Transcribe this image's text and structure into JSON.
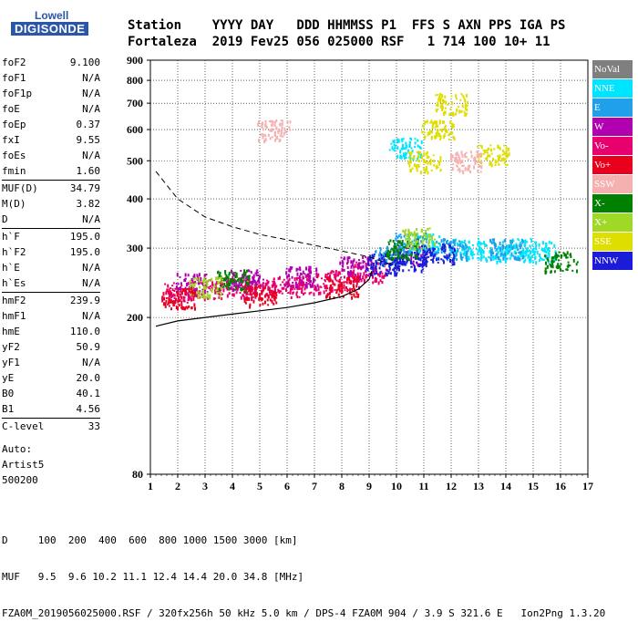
{
  "logo": {
    "line1": "Lowell",
    "line2": "DIGISONDE"
  },
  "header": {
    "line1": "Station    YYYY DAY   DDD HHMMSS P1  FFS S AXN PPS IGA PS",
    "line2": "Fortaleza  2019 Fev25 056 025000 RSF   1 714 100 10+ 11"
  },
  "params": {
    "group1": [
      {
        "label": "foF2",
        "value": "9.100"
      },
      {
        "label": "foF1",
        "value": "N/A"
      },
      {
        "label": "foF1p",
        "value": "N/A"
      },
      {
        "label": "foE",
        "value": "N/A"
      },
      {
        "label": "foEp",
        "value": "0.37"
      },
      {
        "label": "fxI",
        "value": "9.55"
      },
      {
        "label": "foEs",
        "value": "N/A"
      },
      {
        "label": "fmin",
        "value": "1.60"
      }
    ],
    "group2": [
      {
        "label": "MUF(D)",
        "value": "34.79"
      },
      {
        "label": "M(D)",
        "value": "3.82"
      },
      {
        "label": "D",
        "value": "N/A"
      }
    ],
    "group3": [
      {
        "label": "h`F",
        "value": "195.0"
      },
      {
        "label": "h`F2",
        "value": "195.0"
      },
      {
        "label": "h`E",
        "value": "N/A"
      },
      {
        "label": "h`Es",
        "value": "N/A"
      }
    ],
    "group4": [
      {
        "label": "hmF2",
        "value": "239.9"
      },
      {
        "label": "hmF1",
        "value": "N/A"
      },
      {
        "label": "hmE",
        "value": "110.0"
      },
      {
        "label": "yF2",
        "value": "50.9"
      },
      {
        "label": "yF1",
        "value": "N/A"
      },
      {
        "label": "yE",
        "value": "20.0"
      },
      {
        "label": "B0",
        "value": "40.1"
      },
      {
        "label": "B1",
        "value": "4.56"
      }
    ],
    "group5": [
      {
        "label": "C-level",
        "value": "33"
      }
    ]
  },
  "auto": {
    "line1": "Auto:",
    "line2": "Artist5",
    "line3": "500200"
  },
  "legend": [
    {
      "label": "NoVal",
      "color": "#7f7f7f"
    },
    {
      "label": "NNE",
      "color": "#00e5ff"
    },
    {
      "label": "E",
      "color": "#1fa0e8"
    },
    {
      "label": "W",
      "color": "#b000b0"
    },
    {
      "label": "Vo-",
      "color": "#e8006e"
    },
    {
      "label": "Vo+",
      "color": "#e8001c"
    },
    {
      "label": "SSW",
      "color": "#f5b0b0"
    },
    {
      "label": "X-",
      "color": "#008000"
    },
    {
      "label": "X+",
      "color": "#a0d828"
    },
    {
      "label": "SSE",
      "color": "#dede00"
    },
    {
      "label": "NNW",
      "color": "#1c1cd8"
    }
  ],
  "footer": {
    "line1": "D     100  200  400  600  800 1000 1500 3000 [km]",
    "line2": "MUF   9.5  9.6 10.2 11.1 12.4 14.4 20.0 34.8 [MHz]",
    "line3": "FZA0M_2019056025000.RSF / 320fx256h 50 kHz 5.0 km / DPS-4 FZA0M 904 / 3.9 S 321.6 E   Ion2Png 1.3.20"
  },
  "chart_data": {
    "type": "scatter",
    "xlim": [
      1,
      17
    ],
    "ylim": [
      80,
      900
    ],
    "y_scale": "log",
    "xticks": [
      1,
      2,
      3,
      4,
      5,
      6,
      7,
      8,
      9,
      10,
      11,
      12,
      13,
      14,
      15,
      16,
      17
    ],
    "yticks": [
      80,
      200,
      300,
      400,
      500,
      600,
      700,
      800,
      900
    ],
    "grid": true,
    "legend_position": "right",
    "series": [
      {
        "name": "Vo-",
        "color": "#e8006e",
        "clusters": [
          [
            2.0,
            232
          ],
          [
            3.0,
            238
          ],
          [
            4.0,
            240
          ],
          [
            5.0,
            238
          ],
          [
            6.0,
            240
          ],
          [
            7.0,
            245
          ],
          [
            8.0,
            250
          ],
          [
            9.0,
            262
          ]
        ]
      },
      {
        "name": "W",
        "color": "#b000b0",
        "clusters": [
          [
            2.5,
            245
          ],
          [
            4.5,
            250
          ],
          [
            6.5,
            255
          ],
          [
            8.5,
            270
          ],
          [
            10.5,
            290
          ]
        ]
      },
      {
        "name": "NNE",
        "color": "#00e5ff",
        "clusters": [
          [
            10.3,
            540
          ],
          [
            11.0,
            310
          ],
          [
            12.5,
            300
          ],
          [
            13.5,
            295
          ],
          [
            14.5,
            300
          ],
          [
            15.2,
            295
          ]
        ]
      },
      {
        "name": "E",
        "color": "#1fa0e8",
        "clusters": [
          [
            9.8,
            290
          ],
          [
            10.5,
            310
          ],
          [
            12.0,
            300
          ],
          [
            14.0,
            300
          ]
        ]
      },
      {
        "name": "NNW",
        "color": "#1c1cd8",
        "clusters": [
          [
            9.5,
            275
          ],
          [
            10.5,
            280
          ],
          [
            11.5,
            290
          ]
        ]
      },
      {
        "name": "SSE",
        "color": "#dede00",
        "clusters": [
          [
            11.0,
            500
          ],
          [
            11.5,
            600
          ],
          [
            12.0,
            700
          ],
          [
            13.5,
            520
          ]
        ]
      },
      {
        "name": "X-",
        "color": "#008000",
        "clusters": [
          [
            4.0,
            250
          ],
          [
            10.2,
            300
          ],
          [
            16.0,
            278
          ]
        ]
      },
      {
        "name": "X+",
        "color": "#a0d828",
        "clusters": [
          [
            3.0,
            240
          ],
          [
            10.8,
            320
          ]
        ]
      },
      {
        "name": "SSW",
        "color": "#f5b0b0",
        "clusters": [
          [
            5.5,
            600
          ],
          [
            12.5,
            500
          ]
        ]
      },
      {
        "name": "Vo+",
        "color": "#e8001c",
        "clusters": [
          [
            2.0,
            225
          ],
          [
            5.0,
            228
          ],
          [
            8.0,
            240
          ]
        ]
      }
    ],
    "profile_solid": [
      [
        1.2,
        190
      ],
      [
        2,
        196
      ],
      [
        3,
        200
      ],
      [
        4,
        204
      ],
      [
        5,
        208
      ],
      [
        6,
        212
      ],
      [
        7,
        218
      ],
      [
        8,
        226
      ],
      [
        8.6,
        236
      ],
      [
        9.0,
        250
      ],
      [
        9.1,
        262
      ]
    ],
    "profile_dashed": [
      [
        1.2,
        470
      ],
      [
        2,
        400
      ],
      [
        3,
        360
      ],
      [
        4,
        340
      ],
      [
        5,
        325
      ],
      [
        6,
        315
      ],
      [
        7,
        305
      ],
      [
        8,
        295
      ],
      [
        9,
        285
      ],
      [
        10,
        270
      ]
    ]
  }
}
